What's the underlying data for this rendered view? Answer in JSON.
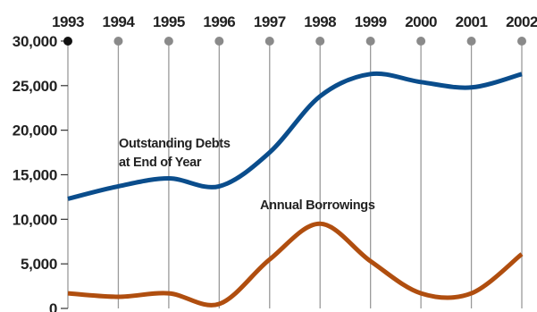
{
  "chart_data": {
    "type": "line",
    "x": [
      "1993",
      "1994",
      "1995",
      "1996",
      "1997",
      "1998",
      "1999",
      "2000",
      "2001",
      "2002"
    ],
    "ylim": [
      0,
      32000
    ],
    "yticks": [
      0,
      5000,
      10000,
      15000,
      20000,
      25000,
      30000
    ],
    "ytick_labels": [
      "0",
      "5,000",
      "10,000",
      "15,000",
      "20,000",
      "25,000",
      "30,000"
    ],
    "grid": "vertical lines at each year",
    "series": [
      {
        "label_lines": [
          "Outstanding Debts",
          "at End of Year"
        ],
        "color": "#0a4d8c",
        "values": [
          12300,
          13700,
          14600,
          13700,
          17500,
          23800,
          26300,
          25400,
          24800,
          26300
        ]
      },
      {
        "label_lines": [
          "Annual Borrowings"
        ],
        "color": "#b04e0f",
        "values": [
          1700,
          1300,
          1700,
          500,
          5500,
          9500,
          5300,
          1700,
          1700,
          6100
        ]
      }
    ],
    "year_marker_colors": {
      "first": "#111111",
      "rest": "#8a8a8a"
    },
    "gridline_color": "#9a9a9a"
  }
}
